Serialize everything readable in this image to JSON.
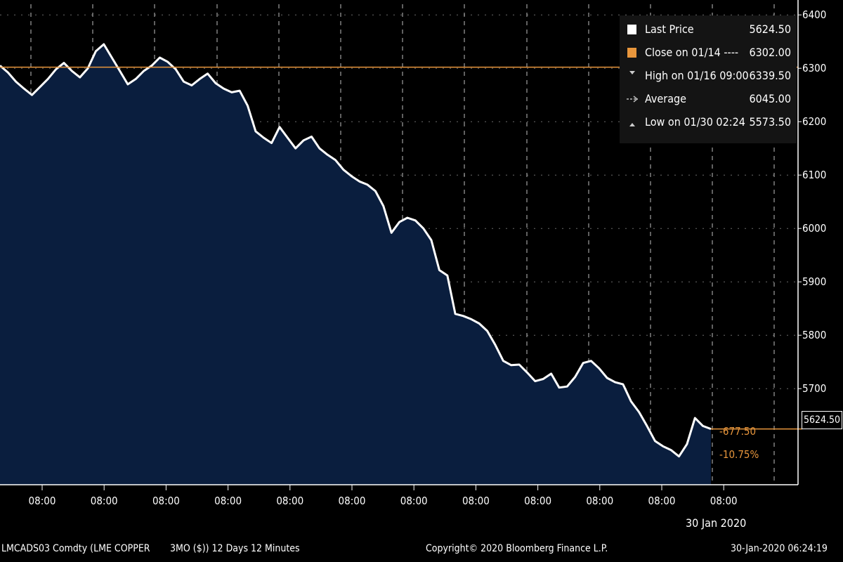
{
  "chart_data": {
    "type": "area",
    "y_ticks": [
      "6400",
      "6300",
      "6200",
      "6100",
      "6000",
      "5900",
      "5800",
      "5700",
      "5624.50"
    ],
    "ylim": [
      5520,
      6420
    ],
    "x_tick_labels": [
      "08:00",
      "08:00",
      "08:00",
      "08:00",
      "08:00",
      "08:00",
      "08:00",
      "08:00",
      "08:00",
      "08:00",
      "08:00",
      "08:00"
    ],
    "date_label": "30 Jan 2020",
    "reference_line": 6302.0,
    "series": [
      {
        "values": [
          6305,
          6292,
          6275,
          6262,
          6250,
          6265,
          6280,
          6298,
          6310,
          6295,
          6283,
          6300,
          6332,
          6345,
          6320,
          6295,
          6270,
          6280,
          6295,
          6305,
          6320,
          6312,
          6298,
          6275,
          6268,
          6280,
          6290,
          6272,
          6262,
          6255,
          6258,
          6230,
          6182,
          6170,
          6160,
          6190,
          6170,
          6150,
          6165,
          6172,
          6150,
          6138,
          6128,
          6110,
          6098,
          6088,
          6082,
          6070,
          6042,
          5992,
          6012,
          6020,
          6015,
          6000,
          5978,
          5922,
          5912,
          5840,
          5836,
          5830,
          5822,
          5808,
          5782,
          5752,
          5744,
          5745,
          5730,
          5714,
          5718,
          5728,
          5702,
          5704,
          5722,
          5748,
          5752,
          5738,
          5720,
          5712,
          5708,
          5676,
          5656,
          5630,
          5602,
          5592,
          5585,
          5573,
          5596,
          5645,
          5630,
          5624.5
        ]
      }
    ]
  },
  "legend": {
    "items": [
      {
        "label": "Last Price",
        "value": "5624.50"
      },
      {
        "label": "Close on 01/14 ----",
        "value": "6302.00"
      },
      {
        "label": "High on 01/16 09:00",
        "value": "6339.50"
      },
      {
        "label": "Average",
        "value": "6045.00"
      },
      {
        "label": "Low on 01/30 02:24",
        "value": "5573.50"
      }
    ]
  },
  "last_price_tag": "5624.50",
  "change": {
    "abs": "-677.50",
    "pct": "-10.75%"
  },
  "footer": {
    "ticker": "LMCADS03 Comdty (LME COPPER",
    "period": "3MO ($)) 12 Days 12 Minutes",
    "copyright": "Copyright© 2020 Bloomberg Finance L.P.",
    "timestamp": "30-Jan-2020 06:24:19"
  },
  "colors": {
    "area_fill": "#0a1e3e",
    "line": "#ffffff",
    "close_line": "#e8963c",
    "grid": "#b4b4b4",
    "background": "#000000"
  }
}
